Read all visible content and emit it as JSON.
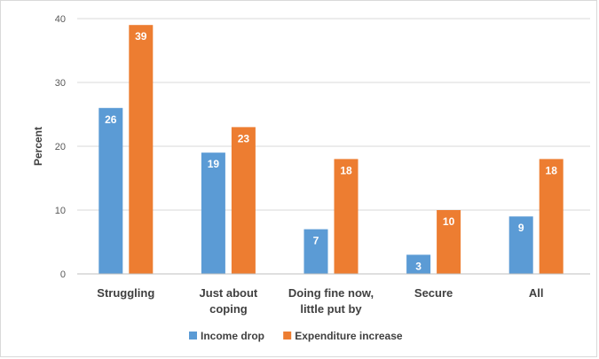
{
  "chart_data": {
    "type": "bar",
    "categories": [
      [
        "Struggling"
      ],
      [
        "Just about",
        "coping"
      ],
      [
        "Doing fine now,",
        "little put by"
      ],
      [
        "Secure"
      ],
      [
        "All"
      ]
    ],
    "series": [
      {
        "name": "Income drop",
        "color": "#5b9bd5",
        "values": [
          26,
          19,
          7,
          3,
          9
        ]
      },
      {
        "name": "Expenditure increase",
        "color": "#ed7d31",
        "values": [
          39,
          23,
          18,
          10,
          18
        ]
      }
    ],
    "ylabel": "Percent",
    "ylim": [
      0,
      40
    ],
    "yticks": [
      0,
      10,
      20,
      30,
      40
    ],
    "grid": true,
    "legend": "bottom"
  }
}
